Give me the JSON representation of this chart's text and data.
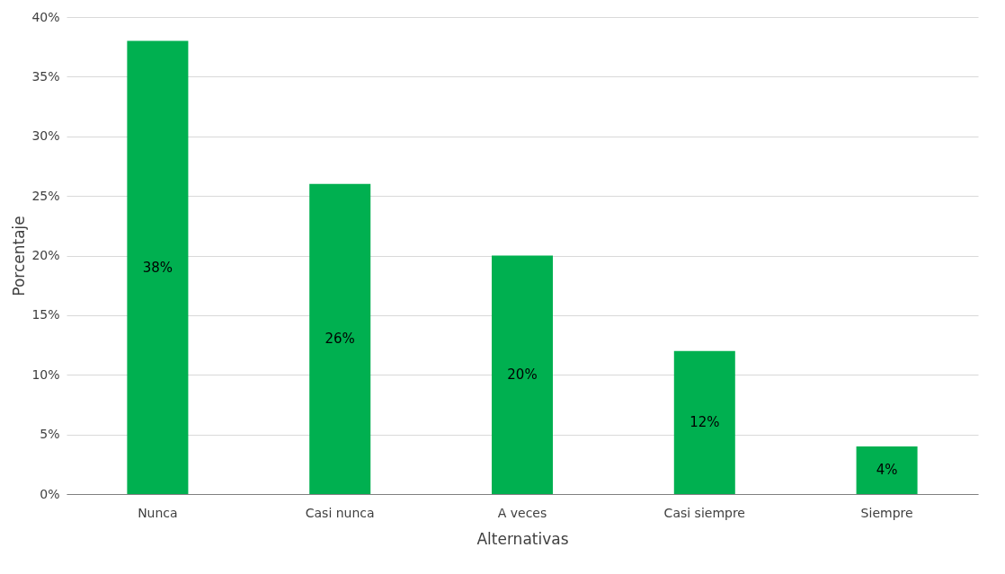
{
  "chart_data": {
    "type": "bar",
    "xlabel": "Alternativas",
    "ylabel": "Porcentaje",
    "categories": [
      "Nunca",
      "Casi nunca",
      "A veces",
      "Casi siempre",
      "Siempre"
    ],
    "values": [
      38,
      26,
      20,
      12,
      4
    ],
    "color": "#00b050",
    "value_labels": [
      "38%",
      "26%",
      "20%",
      "12%",
      "4%"
    ],
    "ylim": [
      0,
      40
    ],
    "yticks": [
      {
        "value": 0,
        "label": "0%"
      },
      {
        "value": 5,
        "label": "5%"
      },
      {
        "value": 10,
        "label": "10%"
      },
      {
        "value": 15,
        "label": "15%"
      },
      {
        "value": 20,
        "label": "20%"
      },
      {
        "value": 25,
        "label": "25%"
      },
      {
        "value": 30,
        "label": "30%"
      },
      {
        "value": 35,
        "label": "35%"
      },
      {
        "value": 40,
        "label": "40%"
      }
    ],
    "grid": "y"
  }
}
